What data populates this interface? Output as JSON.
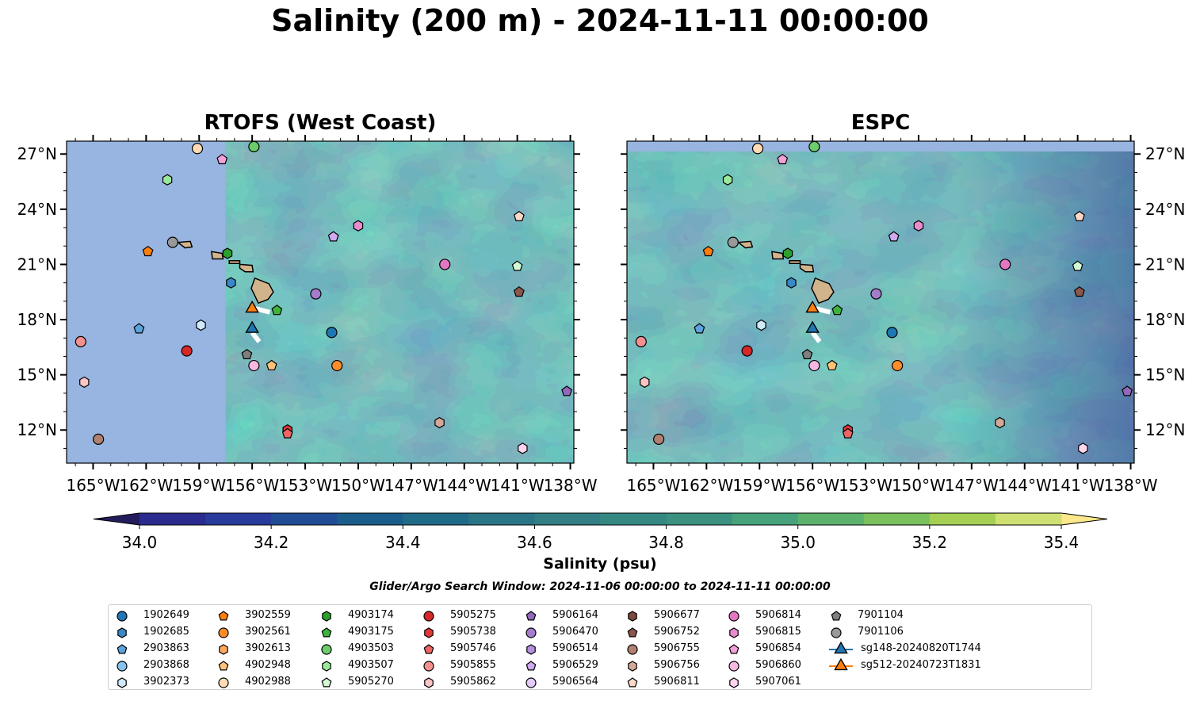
{
  "title": "Salinity (200 m) - 2024-11-11 00:00:00",
  "panels": [
    {
      "title": "RTOFS (West Coast)"
    },
    {
      "title": "ESPC"
    }
  ],
  "colors": {
    "land": "#d2b48c",
    "no_data": "#98b4e0",
    "colormap": [
      "#221c5c",
      "#2a2a8f",
      "#283a9c",
      "#1f4c95",
      "#1a5d8a",
      "#1f6a86",
      "#2a7585",
      "#327e84",
      "#358882",
      "#3a917f",
      "#46a27a",
      "#5cb26c",
      "#7ac05c",
      "#a4cf53",
      "#cfe072",
      "#fde88b"
    ]
  },
  "colorbar": {
    "label": "Salinity (psu)",
    "ticks": [
      "34.0",
      "34.2",
      "34.4",
      "34.6",
      "34.8",
      "35.0",
      "35.2",
      "35.4"
    ],
    "min": 33.9,
    "max": 35.5,
    "extend": "both"
  },
  "search_window": "Glider/Argo Search Window: 2024-11-06 00:00:00 to 2024-11-11 00:00:00",
  "chart_data": {
    "type": "scatter",
    "title": "Salinity (200 m) - 2024-11-11 00:00:00",
    "xlabel": "",
    "ylabel": "",
    "xlim": [
      -166.5,
      -137.8
    ],
    "ylim": [
      10.2,
      27.7
    ],
    "x_ticks": [
      "165°W",
      "162°W",
      "159°W",
      "156°W",
      "153°W",
      "150°W",
      "147°W",
      "144°W",
      "141°W",
      "138°W"
    ],
    "y_ticks": [
      "12°N",
      "15°N",
      "18°N",
      "21°N",
      "24°N",
      "27°N"
    ],
    "x_tick_values": [
      -165,
      -162,
      -159,
      -156,
      -153,
      -150,
      -147,
      -144,
      -141,
      -138
    ],
    "y_tick_values": [
      12,
      15,
      18,
      21,
      24,
      27
    ],
    "colorbar_range": [
      33.9,
      35.5
    ],
    "rtofs_domain_west_edge_lon": -157.5,
    "legend_position": "bottom",
    "series": [
      {
        "name": "1902649",
        "marker": "circle",
        "color": "#1f77b4",
        "lon": -151.5,
        "lat": 17.3
      },
      {
        "name": "1902685",
        "marker": "hexagon",
        "color": "#3a88c8",
        "lon": -157.2,
        "lat": 20.0
      },
      {
        "name": "2903863",
        "marker": "pentagon",
        "color": "#5aa5e0",
        "lon": -162.4,
        "lat": 17.5
      },
      {
        "name": "2903868",
        "marker": "circle",
        "color": "#86c4ee",
        "lon": null,
        "lat": null
      },
      {
        "name": "3902373",
        "marker": "hexagon",
        "color": "#cfeafc",
        "lon": -158.9,
        "lat": 17.7
      },
      {
        "name": "3902559",
        "marker": "pentagon",
        "color": "#ff7f0e",
        "lon": -161.9,
        "lat": 21.7
      },
      {
        "name": "3902561",
        "marker": "circle",
        "color": "#ff8c2a",
        "lon": -151.2,
        "lat": 15.5
      },
      {
        "name": "3902613",
        "marker": "hexagon",
        "color": "#ffa860",
        "lon": null,
        "lat": null
      },
      {
        "name": "4902948",
        "marker": "pentagon",
        "color": "#ffc37a",
        "lon": -154.9,
        "lat": 15.5
      },
      {
        "name": "4902988",
        "marker": "circle",
        "color": "#ffdcb5",
        "lon": -159.1,
        "lat": 27.3
      },
      {
        "name": "4903174",
        "marker": "hexagon",
        "color": "#2ca02c",
        "lon": -157.4,
        "lat": 21.6
      },
      {
        "name": "4903175",
        "marker": "pentagon",
        "color": "#3cb43c",
        "lon": -154.6,
        "lat": 18.5
      },
      {
        "name": "4903503",
        "marker": "circle",
        "color": "#6ccd6c",
        "lon": -155.9,
        "lat": 27.4
      },
      {
        "name": "4903507",
        "marker": "hexagon",
        "color": "#9be89b",
        "lon": -160.8,
        "lat": 25.6
      },
      {
        "name": "5905270",
        "marker": "pentagon",
        "color": "#d3fbd3",
        "lon": -141.0,
        "lat": 20.9
      },
      {
        "name": "5905275",
        "marker": "circle",
        "color": "#d62728",
        "lon": -159.7,
        "lat": 16.3
      },
      {
        "name": "5905738",
        "marker": "hexagon",
        "color": "#e03838",
        "lon": -154.0,
        "lat": 12.0
      },
      {
        "name": "5905746",
        "marker": "pentagon",
        "color": "#ee6565",
        "lon": -154.0,
        "lat": 11.8
      },
      {
        "name": "5905855",
        "marker": "circle",
        "color": "#f59090",
        "lon": -165.7,
        "lat": 16.8
      },
      {
        "name": "5905862",
        "marker": "hexagon",
        "color": "#fbc5c5",
        "lon": -165.5,
        "lat": 14.6
      },
      {
        "name": "5906164",
        "marker": "pentagon",
        "color": "#9467bd",
        "lon": -138.2,
        "lat": 14.1
      },
      {
        "name": "5906470",
        "marker": "circle",
        "color": "#a47ccc",
        "lon": -152.4,
        "lat": 19.4
      },
      {
        "name": "5906514",
        "marker": "hexagon",
        "color": "#b58fdc",
        "lon": null,
        "lat": null
      },
      {
        "name": "5906529",
        "marker": "pentagon",
        "color": "#cfaaf0",
        "lon": -151.4,
        "lat": 22.5
      },
      {
        "name": "5906564",
        "marker": "circle",
        "color": "#e3caf9",
        "lon": null,
        "lat": null
      },
      {
        "name": "5906677",
        "marker": "hexagon",
        "color": "#7b4a3c",
        "lon": null,
        "lat": null
      },
      {
        "name": "5906752",
        "marker": "pentagon",
        "color": "#8c564b",
        "lon": -140.9,
        "lat": 19.5
      },
      {
        "name": "5906755",
        "marker": "circle",
        "color": "#b08070",
        "lon": -164.7,
        "lat": 11.5
      },
      {
        "name": "5906756",
        "marker": "hexagon",
        "color": "#d3a898",
        "lon": -145.4,
        "lat": 12.4
      },
      {
        "name": "5906811",
        "marker": "pentagon",
        "color": "#fbd8c8",
        "lon": -140.9,
        "lat": 23.6
      },
      {
        "name": "5906814",
        "marker": "circle",
        "color": "#e377c2",
        "lon": -145.1,
        "lat": 21.0
      },
      {
        "name": "5906815",
        "marker": "hexagon",
        "color": "#e98ccd",
        "lon": -150.0,
        "lat": 23.1
      },
      {
        "name": "5906854",
        "marker": "pentagon",
        "color": "#f2a2d8",
        "lon": -157.7,
        "lat": 26.7
      },
      {
        "name": "5906860",
        "marker": "circle",
        "color": "#f7b8e2",
        "lon": -155.9,
        "lat": 15.5
      },
      {
        "name": "5907061",
        "marker": "hexagon",
        "color": "#fcd5ee",
        "lon": -140.7,
        "lat": 11.0
      },
      {
        "name": "7901104",
        "marker": "pentagon",
        "color": "#7f7f7f",
        "lon": -156.3,
        "lat": 16.1
      },
      {
        "name": "7901106",
        "marker": "circle",
        "color": "#999999",
        "lon": -160.5,
        "lat": 22.2
      },
      {
        "name": "sg148-20240820T1744",
        "marker": "triangle",
        "color": "#1f77b4",
        "lon": -156.0,
        "lat": 17.5,
        "line": true
      },
      {
        "name": "sg512-20240723T1831",
        "marker": "triangle",
        "color": "#ff7f0e",
        "lon": -156.0,
        "lat": 18.6,
        "line": true
      }
    ]
  }
}
